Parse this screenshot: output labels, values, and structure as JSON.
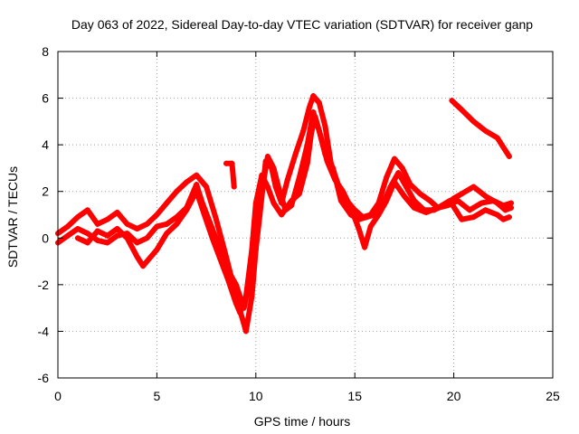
{
  "chart_data": {
    "type": "scatter",
    "title": "Day 063 of 2022, Sidereal Day-to-day VTEC variation (SDTVAR) for receiver ganp",
    "xlabel": "GPS time / hours",
    "ylabel": "SDTVAR / TECUs",
    "xlim": [
      0,
      25
    ],
    "ylim": [
      -6,
      8
    ],
    "xticks": [
      0,
      5,
      10,
      15,
      20,
      25
    ],
    "yticks": [
      -6,
      -4,
      -2,
      0,
      2,
      4,
      6,
      8
    ],
    "grid": true,
    "marker": "+",
    "color": "#ff0000",
    "series": [
      {
        "name": "trace-1",
        "points": [
          [
            0.0,
            0.2
          ],
          [
            0.5,
            0.5
          ],
          [
            1.0,
            0.9
          ],
          [
            1.5,
            1.2
          ],
          [
            2.0,
            0.6
          ],
          [
            2.5,
            0.8
          ],
          [
            3.0,
            1.1
          ],
          [
            3.5,
            0.6
          ],
          [
            4.0,
            0.4
          ],
          [
            4.5,
            0.6
          ],
          [
            5.0,
            1.0
          ],
          [
            5.5,
            1.5
          ],
          [
            6.0,
            2.0
          ],
          [
            6.5,
            2.4
          ],
          [
            7.0,
            2.7
          ],
          [
            7.5,
            2.2
          ],
          [
            8.0,
            0.8
          ],
          [
            8.5,
            -0.8
          ],
          [
            8.8,
            -1.8
          ],
          [
            9.0,
            -2.6
          ],
          [
            9.3,
            -3.4
          ],
          [
            9.5,
            -4.0
          ],
          [
            9.8,
            -2.5
          ],
          [
            10.0,
            -0.5
          ],
          [
            10.2,
            1.0
          ],
          [
            10.5,
            3.3
          ],
          [
            10.8,
            3.0
          ],
          [
            11.0,
            2.2
          ],
          [
            11.3,
            1.5
          ],
          [
            11.6,
            2.5
          ],
          [
            12.0,
            3.6
          ],
          [
            12.4,
            4.6
          ],
          [
            12.7,
            5.6
          ],
          [
            12.9,
            6.1
          ],
          [
            13.2,
            5.8
          ],
          [
            13.5,
            4.8
          ],
          [
            13.8,
            3.2
          ],
          [
            14.2,
            2.2
          ],
          [
            14.6,
            1.6
          ],
          [
            15.0,
            1.2
          ],
          [
            15.4,
            0.9
          ],
          [
            15.8,
            1.0
          ],
          [
            16.2,
            1.5
          ],
          [
            16.6,
            2.6
          ],
          [
            17.0,
            3.4
          ],
          [
            17.4,
            3.0
          ],
          [
            17.8,
            2.3
          ],
          [
            18.3,
            1.9
          ],
          [
            18.8,
            1.6
          ],
          [
            19.2,
            1.3
          ],
          [
            19.7,
            1.4
          ],
          [
            20.2,
            1.6
          ],
          [
            20.8,
            1.2
          ],
          [
            21.4,
            1.5
          ],
          [
            22.0,
            1.6
          ],
          [
            22.5,
            1.4
          ],
          [
            22.9,
            1.5
          ]
        ]
      },
      {
        "name": "trace-2",
        "points": [
          [
            0.0,
            -0.2
          ],
          [
            0.5,
            0.1
          ],
          [
            1.0,
            0.4
          ],
          [
            1.5,
            0.2
          ],
          [
            2.0,
            -0.1
          ],
          [
            2.5,
            -0.2
          ],
          [
            3.0,
            0.1
          ],
          [
            3.5,
            0.2
          ],
          [
            4.0,
            -0.2
          ],
          [
            4.5,
            0.0
          ],
          [
            5.0,
            0.5
          ],
          [
            5.5,
            0.6
          ],
          [
            6.0,
            0.9
          ],
          [
            6.5,
            1.3
          ],
          [
            7.0,
            2.3
          ],
          [
            7.3,
            1.5
          ],
          [
            7.8,
            0.4
          ],
          [
            8.2,
            -0.5
          ],
          [
            8.6,
            -1.4
          ],
          [
            9.0,
            -2.0
          ],
          [
            9.4,
            -3.0
          ],
          [
            9.6,
            -2.2
          ],
          [
            9.8,
            -1.0
          ],
          [
            10.0,
            0.5
          ],
          [
            10.3,
            2.0
          ],
          [
            10.6,
            3.5
          ],
          [
            10.9,
            3.0
          ],
          [
            11.2,
            2.0
          ],
          [
            11.5,
            1.2
          ],
          [
            11.8,
            1.4
          ],
          [
            12.2,
            2.6
          ],
          [
            12.6,
            4.0
          ],
          [
            12.9,
            5.4
          ],
          [
            13.2,
            4.6
          ],
          [
            13.5,
            3.6
          ],
          [
            13.9,
            3.0
          ],
          [
            14.3,
            1.6
          ],
          [
            14.8,
            1.0
          ],
          [
            15.2,
            0.8
          ],
          [
            15.6,
            0.9
          ],
          [
            16.0,
            1.0
          ],
          [
            16.4,
            1.4
          ],
          [
            16.8,
            2.2
          ],
          [
            17.2,
            2.8
          ],
          [
            17.6,
            2.2
          ],
          [
            18.0,
            1.6
          ],
          [
            18.5,
            1.2
          ],
          [
            19.0,
            1.2
          ],
          [
            19.5,
            1.4
          ],
          [
            20.0,
            1.7
          ],
          [
            20.4,
            1.9
          ],
          [
            21.0,
            2.2
          ],
          [
            21.6,
            1.8
          ],
          [
            22.2,
            1.5
          ],
          [
            22.6,
            1.2
          ],
          [
            22.9,
            1.3
          ]
        ]
      },
      {
        "name": "trace-3",
        "points": [
          [
            1.0,
            0.0
          ],
          [
            1.5,
            -0.2
          ],
          [
            2.0,
            0.3
          ],
          [
            2.5,
            0.1
          ],
          [
            3.0,
            0.4
          ],
          [
            3.5,
            0.0
          ],
          [
            4.0,
            -0.8
          ],
          [
            4.3,
            -1.2
          ],
          [
            4.6,
            -0.9
          ],
          [
            5.0,
            -0.5
          ],
          [
            5.5,
            0.2
          ],
          [
            6.0,
            0.6
          ],
          [
            6.5,
            1.2
          ],
          [
            7.0,
            2.0
          ],
          [
            7.4,
            1.0
          ],
          [
            7.8,
            0.0
          ],
          [
            8.2,
            -0.9
          ],
          [
            8.6,
            -1.8
          ],
          [
            9.0,
            -2.8
          ],
          [
            9.2,
            -3.2
          ],
          [
            9.5,
            -2.5
          ],
          [
            9.8,
            -0.5
          ],
          [
            10.0,
            1.5
          ],
          [
            10.3,
            2.7
          ],
          [
            10.6,
            2.2
          ],
          [
            10.9,
            1.5
          ],
          [
            11.3,
            1.0
          ],
          [
            11.8,
            1.6
          ],
          [
            12.2,
            1.9
          ],
          [
            12.6,
            3.2
          ],
          [
            12.8,
            4.5
          ],
          [
            13.0,
            5.2
          ],
          [
            13.3,
            4.3
          ],
          [
            13.6,
            3.3
          ],
          [
            14.0,
            2.5
          ],
          [
            14.4,
            2.0
          ],
          [
            14.8,
            1.3
          ],
          [
            15.2,
            0.4
          ],
          [
            15.5,
            -0.4
          ],
          [
            15.8,
            0.5
          ],
          [
            16.2,
            1.0
          ],
          [
            16.6,
            1.6
          ],
          [
            17.0,
            2.4
          ],
          [
            17.5,
            1.8
          ],
          [
            18.0,
            1.3
          ],
          [
            18.6,
            1.1
          ],
          [
            19.2,
            1.3
          ],
          [
            19.8,
            1.6
          ],
          [
            20.4,
            0.8
          ],
          [
            21.0,
            0.9
          ],
          [
            21.6,
            1.2
          ],
          [
            22.2,
            1.0
          ],
          [
            22.5,
            0.8
          ],
          [
            22.8,
            0.9
          ]
        ]
      },
      {
        "name": "trace-4",
        "points": [
          [
            8.5,
            3.2
          ],
          [
            8.8,
            3.2
          ],
          [
            8.9,
            2.2
          ]
        ]
      },
      {
        "name": "trace-5",
        "points": [
          [
            19.9,
            5.9
          ],
          [
            20.4,
            5.5
          ],
          [
            21.0,
            5.0
          ],
          [
            21.6,
            4.6
          ],
          [
            22.2,
            4.3
          ],
          [
            22.5,
            3.9
          ],
          [
            22.8,
            3.5
          ]
        ]
      }
    ]
  }
}
